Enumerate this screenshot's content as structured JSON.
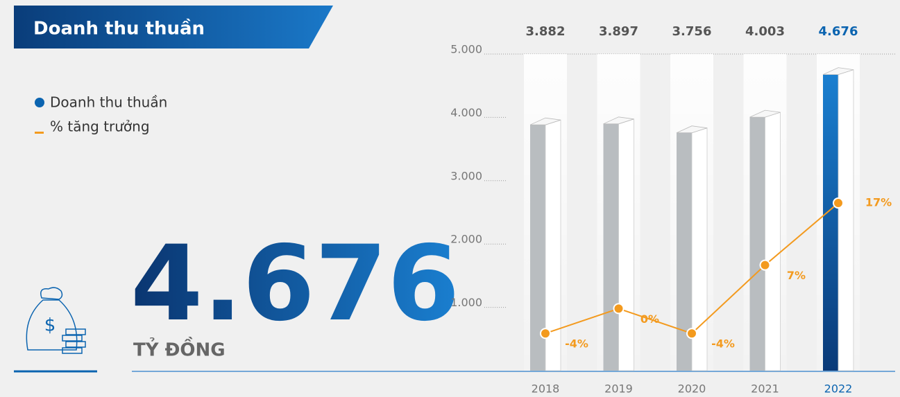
{
  "chart_data": {
    "type": "bar",
    "title": "Doanh thu thuần",
    "unit_label": "TỶ ĐỒNG",
    "categories": [
      "2018",
      "2019",
      "2020",
      "2021",
      "2022"
    ],
    "series": [
      {
        "name": "Doanh thu thuần",
        "color": "#b9bdc0",
        "colors": [
          "#b9bdc0",
          "#b9bdc0",
          "#b9bdc0",
          "#b9bdc0",
          "#0b64b0"
        ],
        "values": [
          3882,
          3897,
          3756,
          4003,
          4676
        ],
        "value_labels": [
          "3.882",
          "3.897",
          "3.756",
          "4.003",
          "4.676"
        ]
      },
      {
        "name": "% tăng trưởng",
        "color": "#f39a1e",
        "axis": "y2",
        "type": "line",
        "values": [
          -4,
          0,
          -4,
          7,
          17
        ],
        "value_labels": [
          "-4%",
          "0%",
          "-4%",
          "7%",
          "17%"
        ]
      }
    ],
    "ylim": [
      0,
      5000
    ],
    "yticks": [
      {
        "value": 1000,
        "label": "1.000"
      },
      {
        "value": 2000,
        "label": "2.000"
      },
      {
        "value": 3000,
        "label": "3.000"
      },
      {
        "value": 4000,
        "label": "4.000"
      },
      {
        "value": 5000,
        "label": "5.000"
      }
    ],
    "y2lim": [
      -10,
      41
    ]
  }
}
